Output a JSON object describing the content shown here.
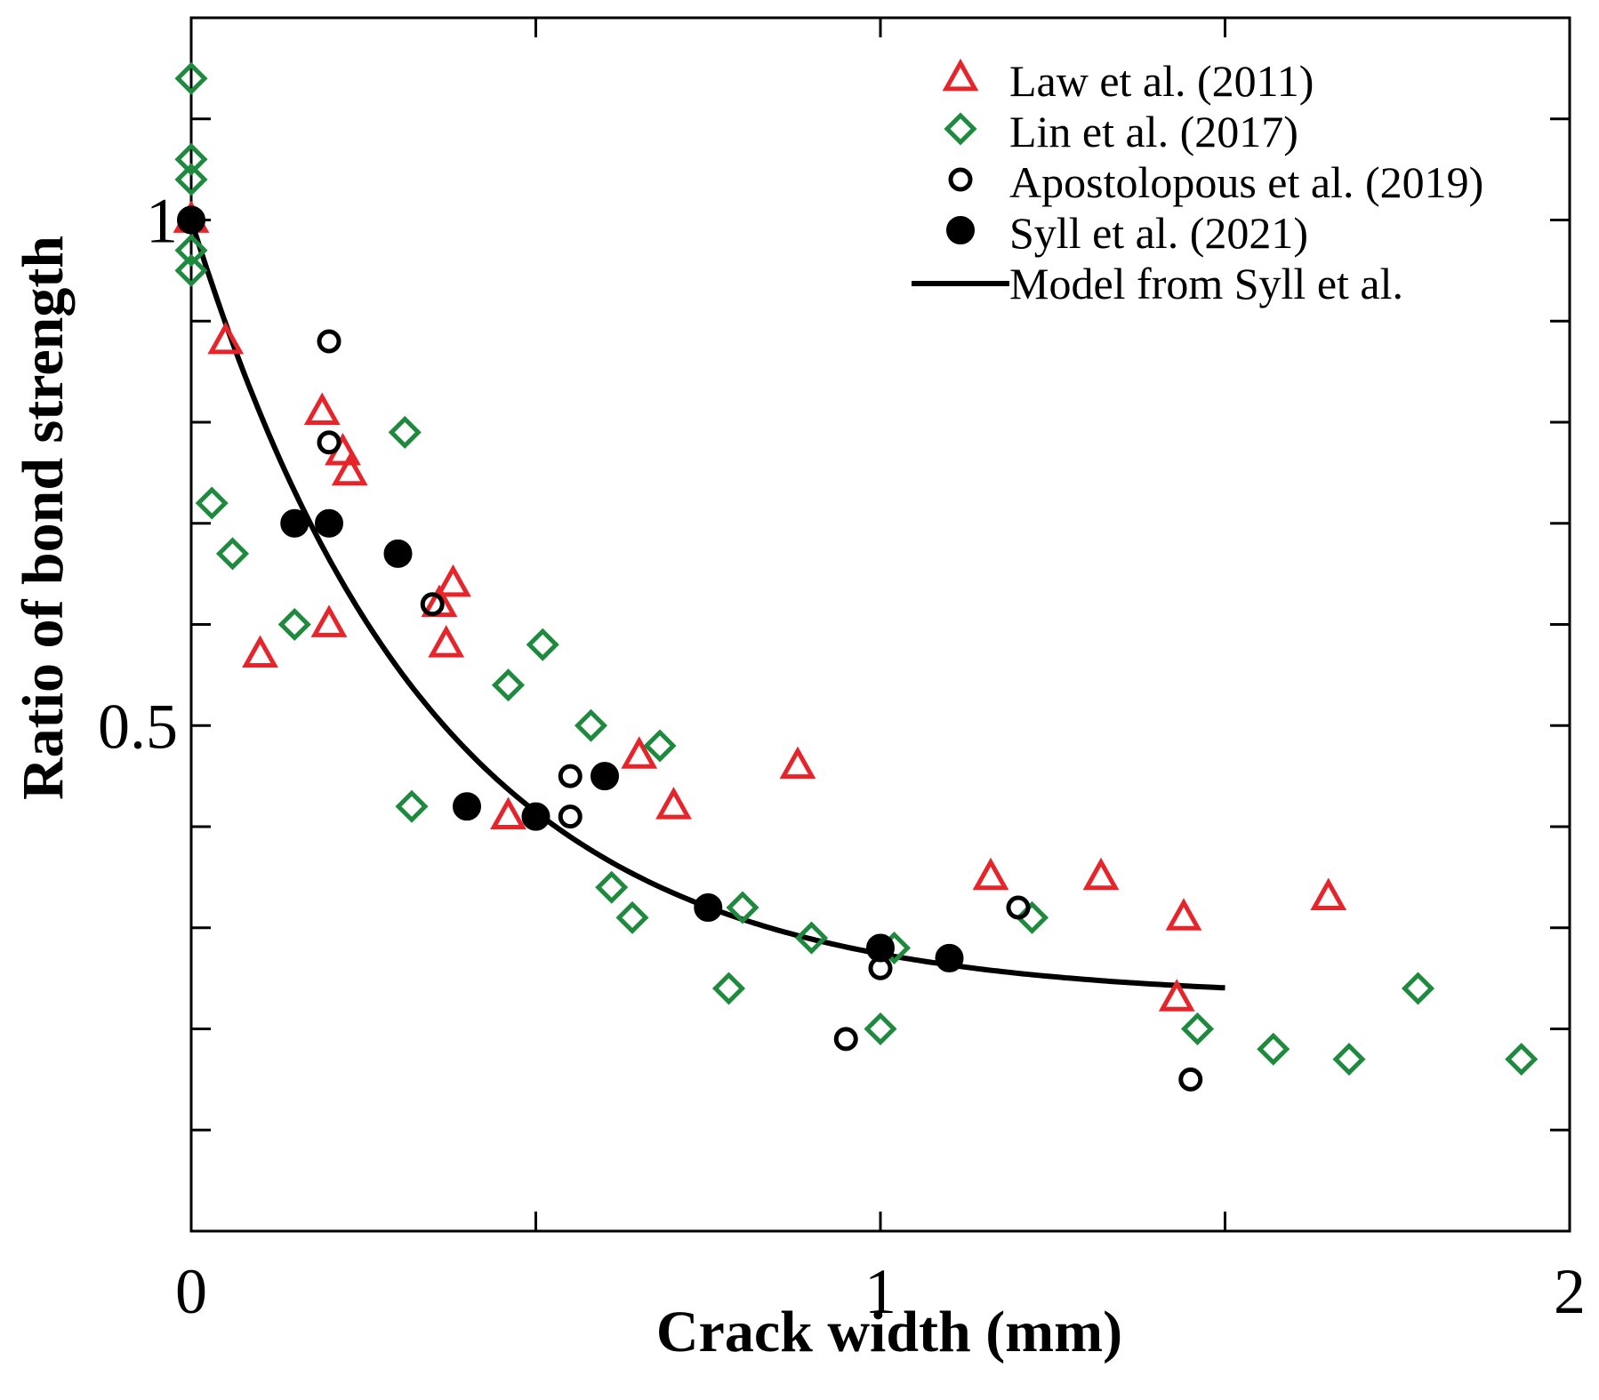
{
  "chart_data": {
    "type": "scatter",
    "title": "",
    "xlabel": "Crack width (mm)",
    "ylabel": "Ratio of bond strength",
    "xlim": [
      0,
      2
    ],
    "ylim": [
      0,
      1.2
    ],
    "x_ticks": [
      0,
      1,
      2
    ],
    "x_tick_labels": [
      "0",
      "1",
      "2"
    ],
    "y_ticks": [
      0.5,
      1
    ],
    "y_tick_labels": [
      "0.5",
      "1"
    ],
    "y_minor_step": 0.1,
    "x_minor_step": 0.5,
    "grid": false,
    "legend_position": "top-right",
    "series": [
      {
        "name": "Law et al. (2011)",
        "marker": "triangle-open",
        "color": "#e8242b",
        "points": [
          [
            0.0,
            1.0
          ],
          [
            0.05,
            0.88
          ],
          [
            0.1,
            0.57
          ],
          [
            0.19,
            0.81
          ],
          [
            0.2,
            0.6
          ],
          [
            0.22,
            0.77
          ],
          [
            0.23,
            0.75
          ],
          [
            0.36,
            0.62
          ],
          [
            0.37,
            0.58
          ],
          [
            0.38,
            0.64
          ],
          [
            0.46,
            0.41
          ],
          [
            0.65,
            0.47
          ],
          [
            0.7,
            0.42
          ],
          [
            0.88,
            0.46
          ],
          [
            1.16,
            0.35
          ],
          [
            1.32,
            0.35
          ],
          [
            1.43,
            0.23
          ],
          [
            1.44,
            0.31
          ],
          [
            1.65,
            0.33
          ]
        ]
      },
      {
        "name": "Lin et al. (2017)",
        "marker": "diamond-open",
        "color": "#1d8a3e",
        "points": [
          [
            0.0,
            1.14
          ],
          [
            0.0,
            1.06
          ],
          [
            0.0,
            1.04
          ],
          [
            0.0,
            0.97
          ],
          [
            0.0,
            0.95
          ],
          [
            0.03,
            0.72
          ],
          [
            0.06,
            0.67
          ],
          [
            0.15,
            0.6
          ],
          [
            0.31,
            0.79
          ],
          [
            0.32,
            0.42
          ],
          [
            0.46,
            0.54
          ],
          [
            0.51,
            0.58
          ],
          [
            0.58,
            0.5
          ],
          [
            0.61,
            0.34
          ],
          [
            0.64,
            0.31
          ],
          [
            0.68,
            0.48
          ],
          [
            0.78,
            0.24
          ],
          [
            0.8,
            0.32
          ],
          [
            0.9,
            0.29
          ],
          [
            1.0,
            0.2
          ],
          [
            1.02,
            0.28
          ],
          [
            1.22,
            0.31
          ],
          [
            1.46,
            0.2
          ],
          [
            1.57,
            0.18
          ],
          [
            1.68,
            0.17
          ],
          [
            1.78,
            0.24
          ],
          [
            1.93,
            0.17
          ]
        ]
      },
      {
        "name": "Apostolopous et al. (2019)",
        "marker": "circle-open",
        "color": "#000000",
        "points": [
          [
            0.2,
            0.88
          ],
          [
            0.2,
            0.78
          ],
          [
            0.35,
            0.62
          ],
          [
            0.55,
            0.45
          ],
          [
            0.55,
            0.41
          ],
          [
            0.95,
            0.19
          ],
          [
            1.0,
            0.26
          ],
          [
            1.2,
            0.32
          ],
          [
            1.45,
            0.15
          ]
        ]
      },
      {
        "name": "Syll et al. (2021)",
        "marker": "circle-filled",
        "color": "#000000",
        "points": [
          [
            0.0,
            1.0
          ],
          [
            0.15,
            0.7
          ],
          [
            0.2,
            0.7
          ],
          [
            0.3,
            0.67
          ],
          [
            0.4,
            0.42
          ],
          [
            0.5,
            0.41
          ],
          [
            0.6,
            0.45
          ],
          [
            0.75,
            0.32
          ],
          [
            1.0,
            0.28
          ],
          [
            1.1,
            0.27
          ]
        ]
      },
      {
        "name": "Model from Syll et al.",
        "marker": "line",
        "color": "#000000",
        "model": {
          "formula": "a + b*exp(-x/c)",
          "a": 0.23,
          "b": 0.77,
          "c": 0.35,
          "x_range": [
            0,
            1.5
          ]
        }
      }
    ]
  }
}
